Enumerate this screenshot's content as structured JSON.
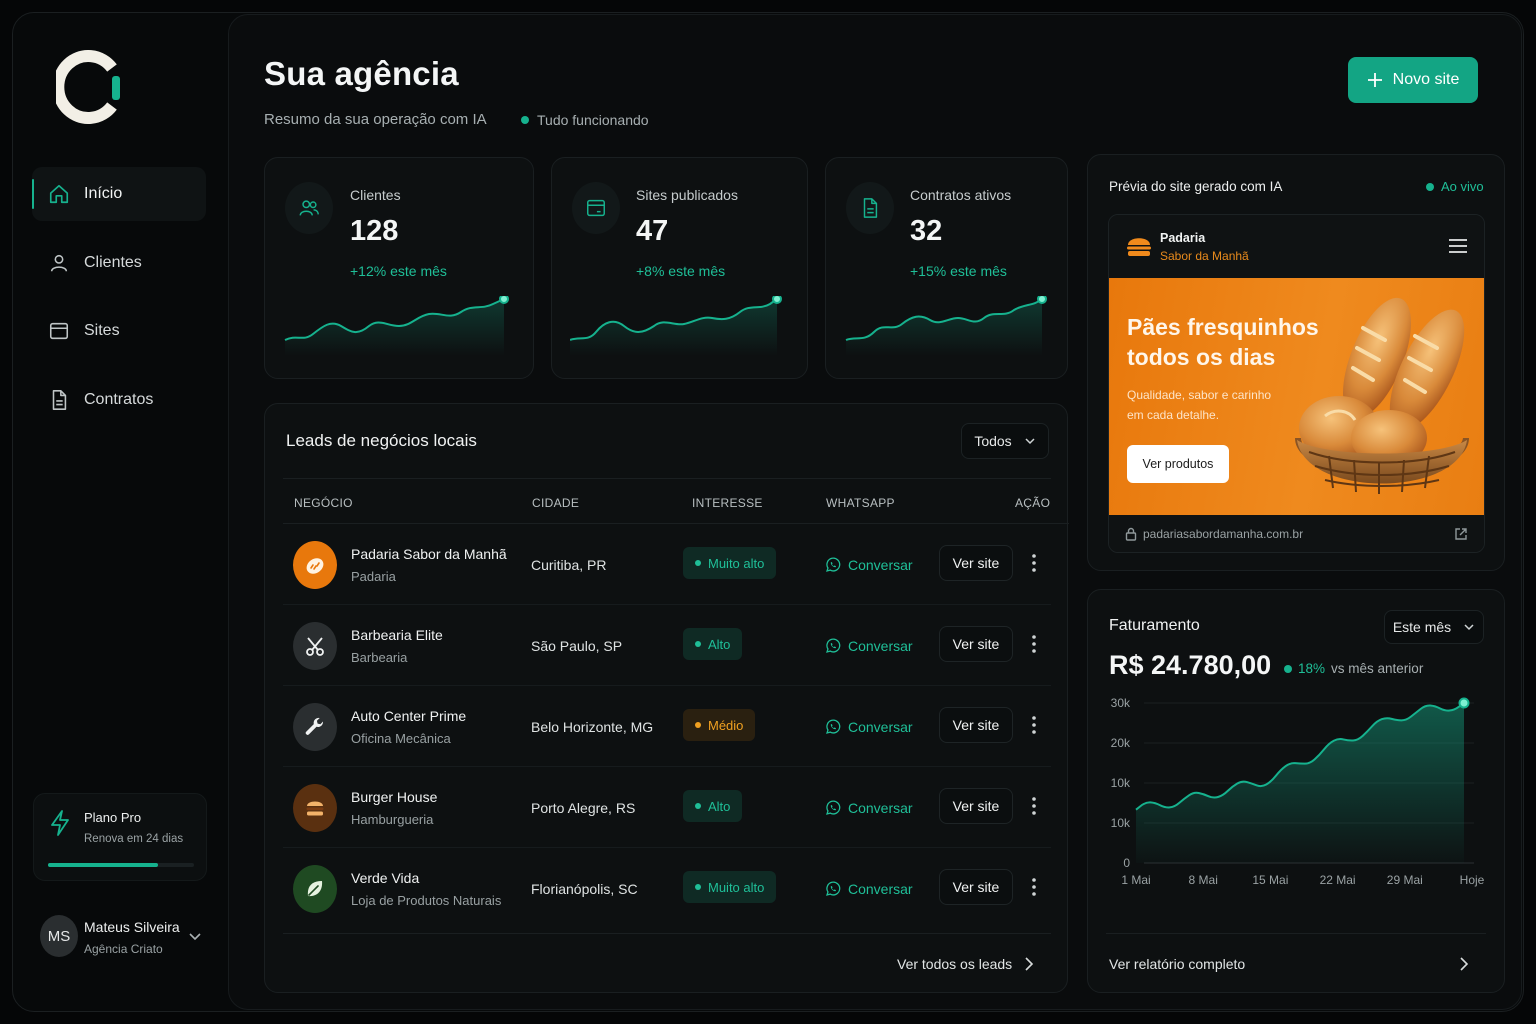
{
  "sidebar": {
    "nav": [
      {
        "label": "Início",
        "icon": "home-icon",
        "active": true
      },
      {
        "label": "Clientes",
        "icon": "user-icon",
        "active": false
      },
      {
        "label": "Sites",
        "icon": "browser-icon",
        "active": false
      },
      {
        "label": "Contratos",
        "icon": "document-icon",
        "active": false
      }
    ],
    "plan": {
      "title": "Plano Pro",
      "subtitle": "Renova em 24 dias",
      "progress": 0.75
    },
    "user": {
      "initials": "MS",
      "name": "Mateus Silveira",
      "org": "Agência Criato"
    }
  },
  "header": {
    "title": "Sua agência",
    "subtitle": "Resumo da sua operação com IA",
    "status": "Tudo funcionando",
    "new_site_label": "Novo site"
  },
  "stats": [
    {
      "label": "Clientes",
      "value": "128",
      "delta": "+12% este mês",
      "icon": "users-icon"
    },
    {
      "label": "Sites publicados",
      "value": "47",
      "delta": "+8% este mês",
      "icon": "browser-icon"
    },
    {
      "label": "Contratos ativos",
      "value": "32",
      "delta": "+15% este mês",
      "icon": "document-icon"
    }
  ],
  "leads": {
    "title": "Leads de negócios locais",
    "filter": "Todos",
    "columns": [
      "NEGÓCIO",
      "CIDADE",
      "INTERESSE",
      "WHATSAPP",
      "AÇÃO"
    ],
    "whatsapp_label": "Conversar",
    "action_label": "Ver site",
    "rows": [
      {
        "name": "Padaria Sabor da Manhã",
        "type": "Padaria",
        "city": "Curitiba, PR",
        "interest": "Muito alto",
        "icon": "bread-icon"
      },
      {
        "name": "Barbearia Elite",
        "type": "Barbearia",
        "city": "São Paulo, SP",
        "interest": "Alto",
        "icon": "scissors-icon"
      },
      {
        "name": "Auto Center Prime",
        "type": "Oficina Mecânica",
        "city": "Belo Horizonte, MG",
        "interest": "Médio",
        "icon": "wrench-icon"
      },
      {
        "name": "Burger House",
        "type": "Hamburgueria",
        "city": "Porto Alegre, RS",
        "interest": "Alto",
        "icon": "burger-icon"
      },
      {
        "name": "Verde Vida",
        "type": "Loja de Produtos Naturais",
        "city": "Florianópolis, SC",
        "interest": "Muito alto",
        "icon": "leaf-icon"
      }
    ],
    "view_all": "Ver todos os leads"
  },
  "preview": {
    "title": "Prévia do site gerado com IA",
    "live": "Ao vivo",
    "site_name": "Padaria",
    "site_name2": "Sabor da Manhã",
    "hero_title": "Pães fresquinhos todos os dias",
    "hero_sub": "Qualidade, sabor e carinho em cada detalhe.",
    "hero_button": "Ver produtos",
    "url": "padariasabordamanha.com.br"
  },
  "revenue": {
    "title": "Faturamento",
    "period": "Este mês",
    "value": "R$ 24.780,00",
    "delta": "18%",
    "delta_suffix": "vs mês anterior",
    "report_link": "Ver relatório completo"
  },
  "colors": {
    "accent": "#16b28e",
    "accent_text": "#1fbf98",
    "high": "#1fbf98",
    "medium": "#f0a020",
    "orange": "#e8780c"
  },
  "chart_data": [
    {
      "type": "line",
      "title": "Faturamento",
      "x": [
        "1 Mai",
        "8 Mai",
        "15 Mai",
        "22 Mai",
        "29 Mai",
        "Hoje"
      ],
      "ytick_labels": [
        "0",
        "10k",
        "10k",
        "20k",
        "30k"
      ],
      "series": [
        {
          "values": [
            10000,
            12500,
            15500,
            22000,
            27500,
            30000
          ]
        }
      ],
      "ylim": [
        0,
        30000
      ],
      "grid": true,
      "legend": "none"
    }
  ]
}
